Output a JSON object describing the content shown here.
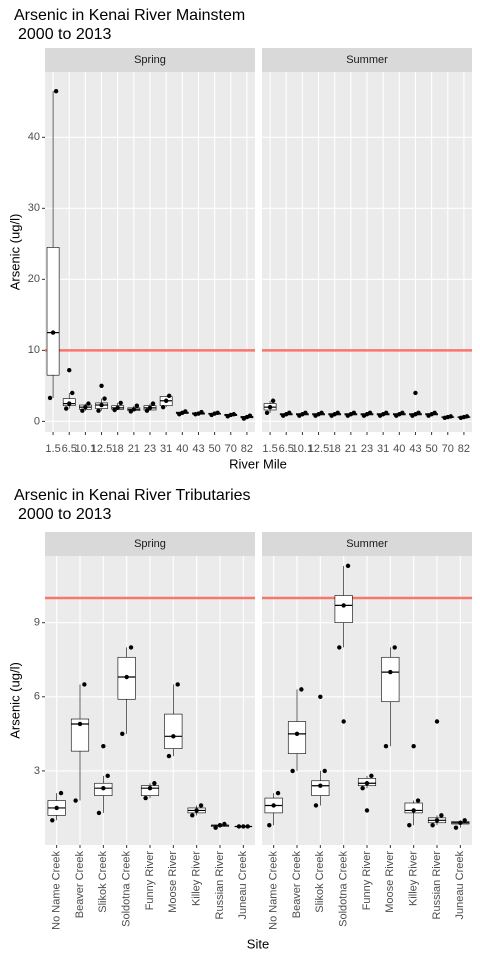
{
  "chart_data": [
    {
      "type": "box",
      "title": "Arsenic in Kenai River Mainstem",
      "subtitle": "2000 to 2013",
      "x_label": "River Mile",
      "y_label": "Arsenic (ug/l)",
      "categories": [
        "1.5",
        "6.5",
        "10.1",
        "12.5",
        "18",
        "21",
        "23",
        "31",
        "40",
        "43",
        "50",
        "70",
        "82"
      ],
      "ylim": [
        -1.5,
        49.2
      ],
      "yticks": [
        0,
        10,
        20,
        30,
        40
      ],
      "grid": true,
      "hline": 10,
      "hline_color": "#f8766d",
      "color": "#000000",
      "facets": [
        {
          "name": "Spring",
          "boxes": [
            {
              "min": 3.3,
              "q1": 6.5,
              "median": 12.5,
              "q3": 24.5,
              "max": 46.5,
              "outliers": []
            },
            {
              "min": 1.8,
              "q1": 2.2,
              "median": 2.5,
              "q3": 3.2,
              "max": 4.0,
              "outliers": [
                7.2
              ]
            },
            {
              "min": 1.5,
              "q1": 1.7,
              "median": 2.0,
              "q3": 2.3,
              "max": 2.5,
              "outliers": []
            },
            {
              "min": 1.5,
              "q1": 1.8,
              "median": 2.3,
              "q3": 2.6,
              "max": 3.2,
              "outliers": [
                5.0
              ]
            },
            {
              "min": 1.6,
              "q1": 1.7,
              "median": 1.9,
              "q3": 2.2,
              "max": 2.6,
              "outliers": []
            },
            {
              "min": 1.4,
              "q1": 1.5,
              "median": 1.7,
              "q3": 1.9,
              "max": 2.2,
              "outliers": []
            },
            {
              "min": 1.5,
              "q1": 1.6,
              "median": 1.9,
              "q3": 2.2,
              "max": 2.5,
              "outliers": []
            },
            {
              "min": 2.0,
              "q1": 2.2,
              "median": 2.9,
              "q3": 3.5,
              "max": 3.6,
              "outliers": []
            },
            {
              "min": 1.0,
              "q1": 1.1,
              "median": 1.2,
              "q3": 1.3,
              "max": 1.4,
              "outliers": []
            },
            {
              "min": 1.0,
              "q1": 1.0,
              "median": 1.1,
              "q3": 1.2,
              "max": 1.3,
              "outliers": []
            },
            {
              "min": 0.9,
              "q1": 1.0,
              "median": 1.1,
              "q3": 1.1,
              "max": 1.2,
              "outliers": []
            },
            {
              "min": 0.7,
              "q1": 0.8,
              "median": 0.9,
              "q3": 1.0,
              "max": 1.0,
              "outliers": []
            },
            {
              "min": 0.4,
              "q1": 0.5,
              "median": 0.6,
              "q3": 0.7,
              "max": 0.8,
              "outliers": []
            }
          ]
        },
        {
          "name": "Summer",
          "boxes": [
            {
              "min": 1.2,
              "q1": 1.6,
              "median": 2.0,
              "q3": 2.5,
              "max": 2.9,
              "outliers": []
            },
            {
              "min": 0.8,
              "q1": 0.9,
              "median": 1.0,
              "q3": 1.1,
              "max": 1.2,
              "outliers": []
            },
            {
              "min": 0.8,
              "q1": 0.9,
              "median": 1.0,
              "q3": 1.1,
              "max": 1.2,
              "outliers": []
            },
            {
              "min": 0.8,
              "q1": 0.9,
              "median": 1.0,
              "q3": 1.1,
              "max": 1.2,
              "outliers": []
            },
            {
              "min": 0.8,
              "q1": 0.9,
              "median": 1.0,
              "q3": 1.1,
              "max": 1.2,
              "outliers": []
            },
            {
              "min": 0.8,
              "q1": 0.9,
              "median": 1.0,
              "q3": 1.1,
              "max": 1.2,
              "outliers": []
            },
            {
              "min": 0.8,
              "q1": 0.9,
              "median": 1.0,
              "q3": 1.1,
              "max": 1.2,
              "outliers": []
            },
            {
              "min": 0.8,
              "q1": 0.9,
              "median": 1.0,
              "q3": 1.1,
              "max": 1.2,
              "outliers": []
            },
            {
              "min": 0.8,
              "q1": 0.9,
              "median": 1.0,
              "q3": 1.1,
              "max": 1.2,
              "outliers": []
            },
            {
              "min": 0.8,
              "q1": 0.9,
              "median": 1.0,
              "q3": 1.1,
              "max": 1.2,
              "outliers": [
                4.0
              ]
            },
            {
              "min": 0.8,
              "q1": 0.9,
              "median": 1.0,
              "q3": 1.1,
              "max": 1.2,
              "outliers": []
            },
            {
              "min": 0.5,
              "q1": 0.55,
              "median": 0.6,
              "q3": 0.65,
              "max": 0.7,
              "outliers": []
            },
            {
              "min": 0.5,
              "q1": 0.55,
              "median": 0.6,
              "q3": 0.65,
              "max": 0.7,
              "outliers": []
            }
          ]
        }
      ]
    },
    {
      "type": "box",
      "title": "Arsenic in Kenai River Tributaries",
      "subtitle": "2000 to 2013",
      "x_label": "Site",
      "y_label": "Arsenic (ug/l)",
      "categories": [
        "No Name Creek",
        "Beaver Creek",
        "Slikok Creek",
        "Soldotna Creek",
        "Funny River",
        "Moose River",
        "Killey River",
        "Russian River",
        "Juneau Creek"
      ],
      "ylim": [
        0,
        11.7
      ],
      "yticks": [
        3,
        6,
        9
      ],
      "grid": true,
      "rotate_labels": true,
      "hline": 10,
      "hline_color": "#f8766d",
      "color": "#000000",
      "facets": [
        {
          "name": "Spring",
          "boxes": [
            {
              "min": 1.0,
              "q1": 1.2,
              "median": 1.5,
              "q3": 1.8,
              "max": 2.1,
              "outliers": []
            },
            {
              "min": 1.8,
              "q1": 3.8,
              "median": 4.9,
              "q3": 5.1,
              "max": 6.5,
              "outliers": []
            },
            {
              "min": 1.3,
              "q1": 2.0,
              "median": 2.3,
              "q3": 2.5,
              "max": 2.8,
              "outliers": [
                4.0
              ]
            },
            {
              "min": 4.5,
              "q1": 5.9,
              "median": 6.8,
              "q3": 7.6,
              "max": 8.0,
              "outliers": []
            },
            {
              "min": 1.9,
              "q1": 2.0,
              "median": 2.3,
              "q3": 2.4,
              "max": 2.5,
              "outliers": []
            },
            {
              "min": 3.6,
              "q1": 3.9,
              "median": 4.4,
              "q3": 5.3,
              "max": 6.5,
              "outliers": []
            },
            {
              "min": 1.2,
              "q1": 1.3,
              "median": 1.4,
              "q3": 1.5,
              "max": 1.6,
              "outliers": []
            },
            {
              "min": 0.7,
              "q1": 0.75,
              "median": 0.8,
              "q3": 0.8,
              "max": 0.85,
              "outliers": []
            },
            {
              "min": 0.75,
              "q1": 0.75,
              "median": 0.75,
              "q3": 0.75,
              "max": 0.75,
              "outliers": []
            }
          ]
        },
        {
          "name": "Summer",
          "boxes": [
            {
              "min": 0.8,
              "q1": 1.3,
              "median": 1.6,
              "q3": 1.9,
              "max": 2.1,
              "outliers": []
            },
            {
              "min": 3.0,
              "q1": 3.7,
              "median": 4.5,
              "q3": 5.0,
              "max": 6.3,
              "outliers": []
            },
            {
              "min": 1.6,
              "q1": 2.0,
              "median": 2.4,
              "q3": 2.6,
              "max": 3.0,
              "outliers": [
                6.0
              ]
            },
            {
              "min": 8.0,
              "q1": 9.0,
              "median": 9.7,
              "q3": 10.1,
              "max": 11.3,
              "outliers": [
                5.0
              ]
            },
            {
              "min": 2.3,
              "q1": 2.4,
              "median": 2.5,
              "q3": 2.7,
              "max": 2.8,
              "outliers": [
                1.4
              ]
            },
            {
              "min": 4.0,
              "q1": 5.8,
              "median": 7.0,
              "q3": 7.6,
              "max": 8.0,
              "outliers": []
            },
            {
              "min": 0.8,
              "q1": 1.3,
              "median": 1.4,
              "q3": 1.7,
              "max": 1.8,
              "outliers": [
                4.0
              ]
            },
            {
              "min": 0.8,
              "q1": 0.9,
              "median": 1.0,
              "q3": 1.1,
              "max": 1.2,
              "outliers": [
                5.0
              ]
            },
            {
              "min": 0.7,
              "q1": 0.85,
              "median": 0.9,
              "q3": 0.95,
              "max": 1.0,
              "outliers": []
            }
          ]
        }
      ]
    }
  ]
}
